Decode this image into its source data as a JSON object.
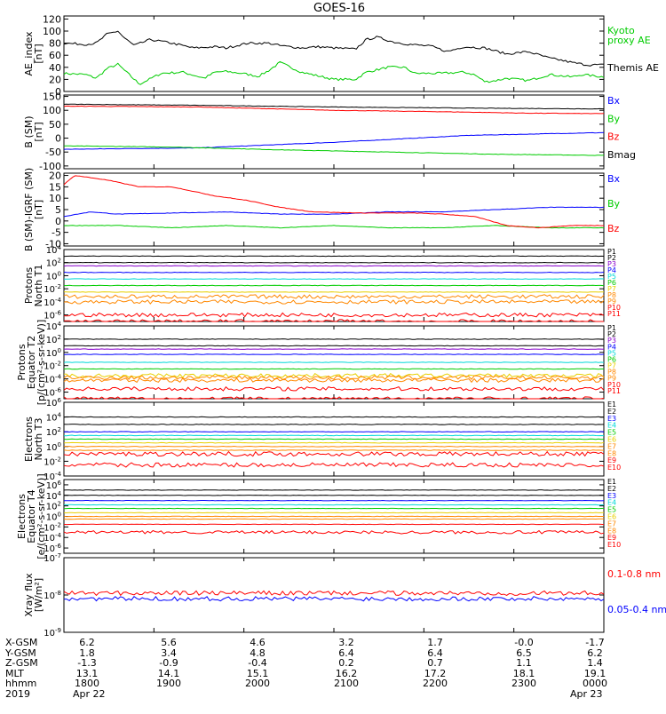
{
  "title": "GOES-16",
  "colors": {
    "black": "#000000",
    "green": "#00cc00",
    "red": "#ff0000",
    "blue": "#0000ff",
    "purple": "#8800cc",
    "cyan": "#00d8d8",
    "yellow": "#e8d000",
    "orange": "#ff8800"
  },
  "x_axis": {
    "ticks": [
      "1800",
      "1900",
      "2000",
      "2100",
      "2200",
      "2300",
      "0000"
    ],
    "rows": [
      {
        "label": "X-GSM",
        "values": [
          "6.2",
          "5.6",
          "4.6",
          "3.2",
          "1.7",
          "-0.0",
          "-1.7"
        ]
      },
      {
        "label": "Y-GSM",
        "values": [
          "1.8",
          "3.4",
          "4.8",
          "6.4",
          "6.4",
          "6.5",
          "6.2"
        ]
      },
      {
        "label": "Z-GSM",
        "values": [
          "-1.3",
          "-0.9",
          "-0.4",
          "0.2",
          "0.7",
          "1.1",
          "1.4"
        ]
      },
      {
        "label": "MLT",
        "values": [
          "13.1",
          "14.1",
          "15.1",
          "16.2",
          "17.2",
          "18.1",
          "19.1"
        ]
      },
      {
        "label": "hhmm",
        "values": [
          "1800",
          "1900",
          "2000",
          "2100",
          "2200",
          "2300",
          "0000"
        ]
      }
    ],
    "year_label": "2019",
    "date_start": "Apr 22",
    "date_end": "Apr 23"
  },
  "chart_data": [
    {
      "type": "line",
      "ylabel": [
        "AE_index",
        "[nT]"
      ],
      "yticks": [
        "0",
        "20",
        "40",
        "60",
        "80",
        "100",
        "120"
      ],
      "ylim": [
        0,
        125
      ],
      "series": [
        {
          "name": "Kyoto proxy AE",
          "color": "#00cc00",
          "points": [
            [
              0,
              30
            ],
            [
              0.04,
              28
            ],
            [
              0.06,
              22
            ],
            [
              0.08,
              38
            ],
            [
              0.1,
              45
            ],
            [
              0.14,
              12
            ],
            [
              0.18,
              30
            ],
            [
              0.22,
              32
            ],
            [
              0.26,
              22
            ],
            [
              0.28,
              32
            ],
            [
              0.3,
              33
            ],
            [
              0.33,
              30
            ],
            [
              0.36,
              25
            ],
            [
              0.38,
              35
            ],
            [
              0.4,
              48
            ],
            [
              0.42,
              40
            ],
            [
              0.44,
              32
            ],
            [
              0.5,
              20
            ],
            [
              0.54,
              20
            ],
            [
              0.56,
              32
            ],
            [
              0.6,
              40
            ],
            [
              0.63,
              40
            ],
            [
              0.65,
              30
            ],
            [
              0.7,
              30
            ],
            [
              0.74,
              32
            ],
            [
              0.76,
              28
            ],
            [
              0.78,
              16
            ],
            [
              0.8,
              18
            ],
            [
              0.82,
              22
            ],
            [
              0.86,
              18
            ],
            [
              0.9,
              28
            ],
            [
              0.94,
              24
            ],
            [
              0.96,
              28
            ],
            [
              1,
              24
            ]
          ]
        },
        {
          "name": "Themis AE",
          "color": "#000000",
          "points": [
            [
              0,
              80
            ],
            [
              0.04,
              78
            ],
            [
              0.06,
              80
            ],
            [
              0.08,
              95
            ],
            [
              0.1,
              100
            ],
            [
              0.11,
              90
            ],
            [
              0.13,
              76
            ],
            [
              0.16,
              86
            ],
            [
              0.2,
              80
            ],
            [
              0.24,
              72
            ],
            [
              0.28,
              74
            ],
            [
              0.3,
              72
            ],
            [
              0.34,
              80
            ],
            [
              0.38,
              80
            ],
            [
              0.4,
              76
            ],
            [
              0.44,
              72
            ],
            [
              0.47,
              74
            ],
            [
              0.5,
              72
            ],
            [
              0.54,
              70
            ],
            [
              0.56,
              86
            ],
            [
              0.58,
              90
            ],
            [
              0.61,
              82
            ],
            [
              0.64,
              78
            ],
            [
              0.68,
              75
            ],
            [
              0.71,
              66
            ],
            [
              0.74,
              74
            ],
            [
              0.78,
              72
            ],
            [
              0.82,
              62
            ],
            [
              0.86,
              66
            ],
            [
              0.9,
              55
            ],
            [
              0.92,
              52
            ],
            [
              0.94,
              48
            ],
            [
              0.97,
              44
            ],
            [
              1,
              44
            ]
          ]
        }
      ]
    },
    {
      "type": "line",
      "ylabel": [
        "B (SM)",
        "[nT]"
      ],
      "yticks": [
        "-100",
        "-50",
        "0",
        "50",
        "100",
        "150"
      ],
      "ylim": [
        -110,
        155
      ],
      "series": [
        {
          "name": "Bx",
          "color": "#0000ff",
          "points": [
            [
              0,
              -40
            ],
            [
              0.25,
              -35
            ],
            [
              0.5,
              -15
            ],
            [
              0.75,
              10
            ],
            [
              1,
              20
            ]
          ]
        },
        {
          "name": "By",
          "color": "#00cc00",
          "points": [
            [
              0,
              -28
            ],
            [
              0.2,
              -32
            ],
            [
              0.4,
              -42
            ],
            [
              0.6,
              -50
            ],
            [
              0.8,
              -58
            ],
            [
              1,
              -62
            ]
          ]
        },
        {
          "name": "Bz",
          "color": "#ff0000",
          "points": [
            [
              0,
              115
            ],
            [
              0.25,
              112
            ],
            [
              0.5,
              100
            ],
            [
              0.7,
              95
            ],
            [
              0.85,
              90
            ],
            [
              1,
              88
            ]
          ]
        },
        {
          "name": "Bmag",
          "color": "#000000",
          "points": [
            [
              0,
              122
            ],
            [
              0.25,
              118
            ],
            [
              0.5,
              112
            ],
            [
              0.75,
              108
            ],
            [
              1,
              105
            ]
          ]
        }
      ]
    },
    {
      "type": "line",
      "ylabel": [
        "B (SM)-IGRF (SM)",
        "[nT]"
      ],
      "yticks": [
        "-10",
        "-5",
        "0",
        "5",
        "10",
        "15",
        "20"
      ],
      "ylim": [
        -11,
        21
      ],
      "series": [
        {
          "name": "Bx",
          "color": "#0000ff",
          "points": [
            [
              0,
              2
            ],
            [
              0.05,
              4
            ],
            [
              0.1,
              3
            ],
            [
              0.2,
              3.5
            ],
            [
              0.3,
              4
            ],
            [
              0.4,
              3
            ],
            [
              0.5,
              3
            ],
            [
              0.6,
              4
            ],
            [
              0.7,
              4
            ],
            [
              0.8,
              5
            ],
            [
              0.9,
              6
            ],
            [
              1,
              6
            ]
          ]
        },
        {
          "name": "By",
          "color": "#00cc00",
          "points": [
            [
              0,
              -2
            ],
            [
              0.1,
              -2
            ],
            [
              0.2,
              -3
            ],
            [
              0.3,
              -2
            ],
            [
              0.4,
              -3
            ],
            [
              0.5,
              -2
            ],
            [
              0.6,
              -3
            ],
            [
              0.7,
              -3
            ],
            [
              0.8,
              -2
            ],
            [
              0.9,
              -3
            ],
            [
              1,
              -3
            ]
          ]
        },
        {
          "name": "Bz",
          "color": "#ff0000",
          "points": [
            [
              0,
              16
            ],
            [
              0.02,
              20
            ],
            [
              0.08,
              18
            ],
            [
              0.14,
              15
            ],
            [
              0.2,
              15
            ],
            [
              0.28,
              11
            ],
            [
              0.34,
              9
            ],
            [
              0.4,
              6
            ],
            [
              0.46,
              4
            ],
            [
              0.55,
              3.5
            ],
            [
              0.65,
              3.5
            ],
            [
              0.7,
              3
            ],
            [
              0.76,
              2
            ],
            [
              0.82,
              -2
            ],
            [
              0.88,
              -3
            ],
            [
              0.94,
              -2
            ],
            [
              1,
              -2
            ]
          ]
        }
      ]
    },
    {
      "type": "line",
      "scale": "log",
      "ylabel": [
        "Protons",
        "North T1"
      ],
      "yticks": [
        "10<sup>-6</sup>",
        "10<sup>-4</sup>",
        "10<sup>-2</sup>",
        "10<sup>0</sup>",
        "10<sup>2</sup>",
        "10<sup>4</sup>"
      ],
      "ylim": [
        -7,
        4
      ],
      "series": [
        {
          "name": "P1",
          "color": "#000000",
          "level": 3
        },
        {
          "name": "P2",
          "color": "#000000",
          "level": 2
        },
        {
          "name": "P3",
          "color": "#8800cc",
          "level": 1.5
        },
        {
          "name": "P4",
          "color": "#0000ff",
          "level": 0.5
        },
        {
          "name": "P5",
          "color": "#00d8d8",
          "level": -0.5
        },
        {
          "name": "P6",
          "color": "#00cc00",
          "level": -1.5
        },
        {
          "name": "P7",
          "color": "#e8d000",
          "level": -2.5
        },
        {
          "name": "P8",
          "color": "#ff8800",
          "level": -3.2
        },
        {
          "name": "P9",
          "color": "#ff8800",
          "level": -4
        },
        {
          "name": "P10",
          "color": "#ff0000",
          "level": -6
        },
        {
          "name": "P11",
          "color": "#ff0000",
          "level": -7
        }
      ]
    },
    {
      "type": "line",
      "scale": "log",
      "ylabel": [
        "Protons",
        "Equator T2",
        "[p/(cm²-s-sr-keV)]"
      ],
      "yticks": [
        "10<sup>-6</sup>",
        "10<sup>-4</sup>",
        "10<sup>-2</sup>",
        "10<sup>0</sup>",
        "10<sup>2</sup>",
        "10<sup>4</sup>"
      ],
      "ylim": [
        -7,
        4
      ],
      "series": [
        {
          "name": "P1",
          "color": "#000000",
          "level": 2
        },
        {
          "name": "P2",
          "color": "#000000",
          "level": 1
        },
        {
          "name": "P3",
          "color": "#8800cc",
          "level": 0.5
        },
        {
          "name": "P4",
          "color": "#0000ff",
          "level": -0.3
        },
        {
          "name": "P5",
          "color": "#00d8d8",
          "level": -1.5
        },
        {
          "name": "P6",
          "color": "#00cc00",
          "level": -2.5
        },
        {
          "name": "P7",
          "color": "#e8d000",
          "level": -3.5
        },
        {
          "name": "P8",
          "color": "#ff8800",
          "level": -3.8
        },
        {
          "name": "P9",
          "color": "#ff8800",
          "level": -4.2
        },
        {
          "name": "P10",
          "color": "#ff0000",
          "level": -5.5
        },
        {
          "name": "P11",
          "color": "#ff0000",
          "level": -7
        }
      ]
    },
    {
      "type": "line",
      "scale": "log",
      "ylabel": [
        "Electrons",
        "North T3"
      ],
      "yticks": [
        "10<sup>-4</sup>",
        "10<sup>-2</sup>",
        "10<sup>0</sup>",
        "10<sup>2</sup>",
        "10<sup>4</sup>",
        "10<sup>6</sup>"
      ],
      "ylim": [
        -4,
        6
      ],
      "series": [
        {
          "name": "E1",
          "color": "#000000",
          "level": 4
        },
        {
          "name": "E2",
          "color": "#000000",
          "level": 3
        },
        {
          "name": "E3",
          "color": "#0000ff",
          "level": 2
        },
        {
          "name": "E4",
          "color": "#00d8d8",
          "level": 1.5
        },
        {
          "name": "E5",
          "color": "#00cc00",
          "level": 1
        },
        {
          "name": "E6",
          "color": "#e8d000",
          "level": 0.5
        },
        {
          "name": "E7",
          "color": "#ff8800",
          "level": 0
        },
        {
          "name": "E8",
          "color": "#ff8800",
          "level": -0.5
        },
        {
          "name": "E9",
          "color": "#ff0000",
          "level": -1
        },
        {
          "name": "E10",
          "color": "#ff0000",
          "level": -2.5
        }
      ]
    },
    {
      "type": "line",
      "scale": "log",
      "ylabel": [
        "Electrons",
        "Equator T4",
        "[e/(cm²-s-sr-keV)]"
      ],
      "yticks": [
        "10<sup>-6</sup>",
        "10<sup>-4</sup>",
        "10<sup>-2</sup>",
        "10<sup>0</sup>",
        "10<sup>2</sup>",
        "10<sup>4</sup>",
        "10<sup>6</sup>"
      ],
      "ylim": [
        -7,
        7
      ],
      "series": [
        {
          "name": "E1",
          "color": "#000000",
          "level": 5
        },
        {
          "name": "E2",
          "color": "#000000",
          "level": 4
        },
        {
          "name": "E3",
          "color": "#0000ff",
          "level": 3
        },
        {
          "name": "E4",
          "color": "#00d8d8",
          "level": 2.2
        },
        {
          "name": "E5",
          "color": "#00cc00",
          "level": 1.5
        },
        {
          "name": "E6",
          "color": "#e8d000",
          "level": 0.7
        },
        {
          "name": "E7",
          "color": "#ff8800",
          "level": 0
        },
        {
          "name": "E8",
          "color": "#ff8800",
          "level": -0.5
        },
        {
          "name": "E9",
          "color": "#ff0000",
          "level": -1.5
        },
        {
          "name": "E10",
          "color": "#ff0000",
          "level": -3
        }
      ]
    },
    {
      "type": "line",
      "scale": "log",
      "ylabel": [
        "Xray flux",
        "[W/m²]"
      ],
      "yticks": [
        "10<sup>-9</sup>",
        "10<sup>-8</sup>",
        "10<sup>-7</sup>"
      ],
      "ylim": [
        -9,
        -7
      ],
      "series": [
        {
          "name": "0.1-0.8 nm",
          "color": "#ff0000",
          "level": -7.95
        },
        {
          "name": "0.05-0.4 nm",
          "color": "#0000ff",
          "level": -8.1
        }
      ]
    }
  ]
}
